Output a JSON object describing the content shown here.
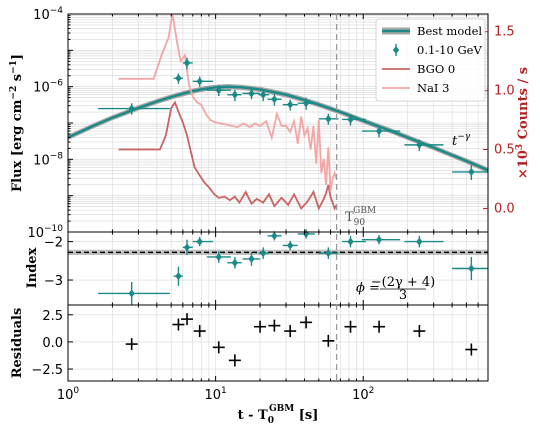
{
  "colors": {
    "teal": "#1a8a87",
    "model_band": "#8a8a8a",
    "bgo": "#c86464",
    "nai": "#f4a6a6",
    "right_axis": "#b22222",
    "t90": "#999999",
    "residual_marker": "#000000"
  },
  "chart_data": [
    {
      "type": "line",
      "panel": "flux",
      "xscale": "log",
      "xlim": [
        1,
        700
      ],
      "yscale": "log",
      "ylim": [
        1e-10,
        0.0001
      ],
      "ylabel": "Flux [erg cm$^{-2}$ s$^{-1}$]",
      "ylabel_text": "Flux [erg cm",
      "ylabel_sup1": "−2",
      "ylabel_mid": " s",
      "ylabel_sup2": "−1",
      "ylabel_end": "]",
      "y_ticks": [
        {
          "value": 1e-10,
          "base": "10",
          "exp": "−10"
        },
        {
          "value": 1e-08,
          "base": "10",
          "exp": "−8"
        },
        {
          "value": 1e-06,
          "base": "10",
          "exp": "−6"
        },
        {
          "value": 0.0001,
          "base": "10",
          "exp": "−4"
        }
      ],
      "right_axis": {
        "ylabel": "×10³ Counts / s",
        "ylabel_pre": "×10",
        "ylabel_sup": "3",
        "ylabel_post": " Counts / s",
        "ylim": [
          -0.2,
          1.65
        ],
        "ticks": [
          "0.0",
          "0.5",
          "1.0",
          "1.5"
        ],
        "tick_values": [
          0.0,
          0.5,
          1.0,
          1.5
        ]
      },
      "legend": {
        "placement": "top-right",
        "entries": [
          {
            "label": "Best model",
            "kind": "band"
          },
          {
            "label": "0.1-10 GeV",
            "kind": "errorbar"
          },
          {
            "label": "BGO 0",
            "kind": "line-bgo"
          },
          {
            "label": "NaI 3",
            "kind": "line-nai"
          }
        ]
      },
      "model": {
        "name": "Best model",
        "x": [
          1,
          1.5,
          2,
          3,
          4,
          5,
          6,
          7,
          8,
          9,
          10,
          12,
          15,
          20,
          30,
          40,
          50,
          70,
          100,
          150,
          200,
          300,
          400,
          500,
          700
        ],
        "y": [
          4e-08,
          8.5e-08,
          1.4e-07,
          2.6e-07,
          3.9e-07,
          5.2e-07,
          6.4e-07,
          7.5e-07,
          8.4e-07,
          9.1e-07,
          9.6e-07,
          1e-06,
          9.6e-07,
          8.4e-07,
          6e-07,
          4.3e-07,
          3.2e-07,
          2e-07,
          1.15e-07,
          6.3e-08,
          4e-08,
          2.1e-08,
          1.3e-08,
          9e-09,
          5e-09
        ],
        "band_factor": 1.18
      },
      "lat_points": {
        "name": "0.1-10 GeV",
        "x": [
          2.7,
          5.6,
          6.4,
          7.8,
          10.5,
          13.5,
          17.5,
          21,
          25,
          32,
          41,
          58,
          82,
          128,
          240,
          540
        ],
        "xerr_lo": [
          1.1,
          0.4,
          0.4,
          0.8,
          1.8,
          1.5,
          2.3,
          1.5,
          2.5,
          3.5,
          5,
          8,
          10,
          30,
          50,
          140
        ],
        "xerr_hi": [
          2.2,
          0.4,
          0.6,
          1.8,
          2.2,
          1.5,
          2.5,
          2,
          3,
          4,
          6,
          10,
          22,
          50,
          110,
          160
        ],
        "y": [
          2.5e-07,
          1.7e-06,
          4.5e-06,
          1.4e-06,
          8e-07,
          6e-07,
          6.5e-07,
          6e-07,
          4.5e-07,
          3.2e-07,
          3.5e-07,
          1.3e-07,
          1.25e-07,
          6e-08,
          2.5e-08,
          4.5e-09
        ],
        "yerr_lo": [
          8e-08,
          5e-07,
          1.5e-06,
          4e-07,
          2.5e-07,
          2e-07,
          2e-07,
          2e-07,
          1.5e-07,
          1e-07,
          1.2e-07,
          4e-08,
          4e-08,
          2e-08,
          8e-09,
          1.8e-09
        ],
        "yerr_hi": [
          1e-07,
          6e-07,
          1.8e-06,
          5e-07,
          3e-07,
          2.2e-07,
          2.3e-07,
          2.2e-07,
          1.7e-07,
          1.2e-07,
          1.4e-07,
          5e-08,
          5e-08,
          2.3e-08,
          1e-08,
          2.5e-09
        ]
      },
      "bgo_curve": {
        "name": "BGO 0",
        "x": [
          2.2,
          3.2,
          4.2,
          4.6,
          5.0,
          5.3,
          5.6,
          6.0,
          6.4,
          6.8,
          7.2,
          7.8,
          8.4,
          9.0,
          9.8,
          10.5,
          11.5,
          12.5,
          13.5,
          14.5,
          16,
          17.5,
          19,
          21,
          23,
          25,
          28,
          31,
          34,
          38,
          42,
          46,
          50,
          54,
          56,
          58,
          60,
          62,
          64,
          66
        ],
        "y": [
          0.5,
          0.5,
          0.5,
          0.62,
          0.85,
          0.9,
          0.82,
          0.73,
          0.62,
          0.48,
          0.35,
          0.28,
          0.22,
          0.18,
          0.12,
          0.09,
          0.1,
          0.07,
          0.1,
          0.05,
          0.14,
          0.04,
          0.08,
          0.05,
          0.12,
          0.02,
          0.09,
          0.03,
          0.12,
          0.0,
          0.06,
          0.14,
          0.0,
          0.08,
          0.13,
          0.2,
          0.1,
          0.05,
          0.0,
          0.03
        ]
      },
      "nai_curve": {
        "name": "NaI 3",
        "x": [
          2.2,
          3.0,
          3.8,
          4.3,
          4.8,
          5.1,
          5.5,
          5.8,
          6.2,
          6.6,
          7.0,
          7.5,
          8.0,
          8.6,
          9.2,
          10.0,
          11.0,
          12.0,
          13.0,
          14.0,
          15.5,
          17.0,
          18.5,
          20,
          22,
          24,
          26,
          28,
          30,
          32,
          34,
          36,
          38,
          40,
          42,
          44,
          46,
          48,
          50,
          52,
          54,
          56,
          58,
          60,
          62,
          64,
          66
        ],
        "y": [
          1.1,
          1.1,
          1.1,
          1.3,
          1.45,
          1.65,
          1.4,
          1.25,
          1.3,
          1.05,
          0.95,
          0.9,
          0.88,
          0.8,
          0.75,
          0.73,
          0.72,
          0.71,
          0.7,
          0.69,
          0.72,
          0.69,
          0.72,
          0.7,
          0.74,
          0.6,
          0.8,
          0.7,
          0.7,
          0.65,
          0.74,
          0.55,
          0.78,
          0.62,
          0.68,
          0.5,
          0.7,
          0.38,
          0.75,
          0.3,
          0.42,
          0.2,
          0.52,
          0.15,
          0.25,
          0.3,
          0.25
        ]
      },
      "t90_line_x": 66,
      "annotations": {
        "t90_main": "T",
        "t90_sub": "90",
        "t90_sup": "GBM",
        "tgamma_base": "t",
        "tgamma_sup": "−γ"
      }
    },
    {
      "type": "scatter",
      "panel": "index",
      "xscale": "log",
      "xlim": [
        1,
        700
      ],
      "ylabel": "Index",
      "ylim": [
        -3.65,
        -1.75
      ],
      "y_ticks": [
        {
          "value": -2,
          "label": "−2"
        },
        {
          "value": -3,
          "label": "−3"
        }
      ],
      "reference_line": -2.28,
      "reference_band": [
        -2.35,
        -2.21
      ],
      "points": {
        "x": [
          2.7,
          5.6,
          6.4,
          7.8,
          10.5,
          13.5,
          17.5,
          21,
          25,
          32,
          41,
          58,
          82,
          128,
          240,
          540
        ],
        "xerr_lo": [
          1.1,
          0.4,
          0.4,
          0.8,
          1.8,
          1.5,
          2.3,
          1.5,
          2.5,
          3.5,
          5,
          8,
          10,
          30,
          50,
          140
        ],
        "xerr_hi": [
          2.2,
          0.4,
          0.6,
          1.8,
          2.2,
          1.5,
          2.5,
          2,
          3,
          4,
          6,
          10,
          22,
          50,
          110,
          160
        ],
        "y": [
          -3.35,
          -2.9,
          -2.15,
          -2.0,
          -2.4,
          -2.55,
          -2.45,
          -2.3,
          -1.85,
          -2.1,
          -1.8,
          -2.3,
          -2.0,
          -1.95,
          -2.0,
          -2.7
        ],
        "yerr": [
          0.3,
          0.25,
          0.2,
          0.12,
          0.15,
          0.15,
          0.18,
          0.15,
          0.12,
          0.12,
          0.12,
          0.15,
          0.15,
          0.12,
          0.15,
          0.3
        ]
      },
      "annotation": {
        "lhs": "ϕ = ",
        "numerator": "−(2γ + 4)",
        "denominator": "3"
      }
    },
    {
      "type": "scatter",
      "panel": "residuals",
      "xscale": "log",
      "xlim": [
        1,
        700
      ],
      "xlabel_text": "t - T",
      "xlabel_sub": "0",
      "xlabel_sup": "GBM",
      "xlabel_end": " [s]",
      "ylabel": "Residuals",
      "ylim": [
        -3.6,
        3.4
      ],
      "y_ticks": [
        {
          "value": 2.5,
          "label": "2.5"
        },
        {
          "value": 0.0,
          "label": "0.0"
        },
        {
          "value": -2.5,
          "label": "−2.5"
        }
      ],
      "x_ticks": [
        {
          "value": 1,
          "base": "10",
          "exp": "0"
        },
        {
          "value": 10,
          "base": "10",
          "exp": "1"
        },
        {
          "value": 100,
          "base": "10",
          "exp": "2"
        }
      ],
      "points": {
        "x": [
          2.7,
          5.6,
          6.4,
          7.8,
          10.5,
          13.5,
          20,
          25,
          32,
          41,
          58,
          82,
          128,
          240,
          540
        ],
        "y": [
          -0.2,
          1.6,
          2.1,
          1.0,
          -0.5,
          -1.7,
          1.4,
          1.5,
          1.0,
          1.8,
          0.1,
          1.4,
          1.4,
          1.0,
          -0.7
        ]
      }
    }
  ]
}
